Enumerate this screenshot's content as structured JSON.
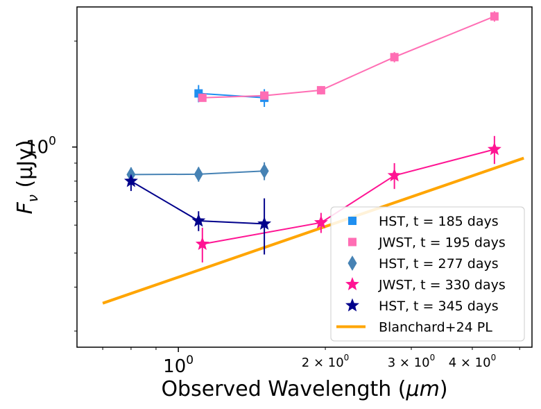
{
  "chart_data": {
    "type": "scatter",
    "title": "",
    "xlabel": "Observed Wavelength (μm)",
    "xlabel_main": "Observed Wavelength (",
    "xlabel_unit": "μm",
    "xlabel_close": ")",
    "ylabel_symbol": "F",
    "ylabel_sub": "ν",
    "ylabel_unit": " (μJy)",
    "xscale": "log",
    "yscale": "log",
    "xlim": [
      0.62,
      5.3
    ],
    "ylim": [
      0.27,
      2.5
    ],
    "grid": false,
    "legend_position": "lower-right",
    "x_ticks": [
      {
        "value": 1.0,
        "label": "10",
        "exp": "0",
        "size": "major"
      },
      {
        "value": 2.0,
        "label": "2 × 10",
        "exp": "0",
        "size": "minor"
      },
      {
        "value": 3.0,
        "label": "3 × 10",
        "exp": "0",
        "size": "minor"
      },
      {
        "value": 4.0,
        "label": "4 × 10",
        "exp": "0",
        "size": "minor"
      }
    ],
    "y_ticks": [
      {
        "value": 1.0,
        "label": "10",
        "exp": "0"
      }
    ],
    "series": [
      {
        "name": "HST, t = 185 days",
        "color": "#1f8ff0",
        "marker": "square",
        "x": [
          1.1,
          1.5
        ],
        "y": [
          1.42,
          1.38
        ],
        "yerr": [
          0.08,
          0.08
        ]
      },
      {
        "name": "JWST, t = 195 days",
        "color": "#ff6eb4",
        "marker": "square",
        "x": [
          1.12,
          1.5,
          1.96,
          2.77,
          4.44
        ],
        "y": [
          1.38,
          1.4,
          1.45,
          1.8,
          2.35
        ],
        "yerr": [
          0.03,
          0.04,
          0.04,
          0.06,
          0.08
        ]
      },
      {
        "name": "HST, t = 277 days",
        "color": "#4682b4",
        "marker": "diamond",
        "x": [
          0.8,
          1.1,
          1.5
        ],
        "y": [
          0.835,
          0.837,
          0.855
        ],
        "yerr": [
          0.04,
          0.04,
          0.05
        ]
      },
      {
        "name": "JWST, t = 330 days",
        "color": "#ff1493",
        "marker": "star",
        "x": [
          1.12,
          1.96,
          2.77,
          4.44
        ],
        "y": [
          0.53,
          0.61,
          0.83,
          0.985
        ],
        "yerr": [
          0.06,
          0.04,
          0.07,
          0.09
        ]
      },
      {
        "name": "HST, t = 345 days",
        "color": "#00008b",
        "marker": "star",
        "x": [
          0.8,
          1.1,
          1.5
        ],
        "y": [
          0.8,
          0.617,
          0.605
        ],
        "yerr": [
          0.05,
          0.04,
          0.11
        ]
      },
      {
        "name": "Blanchard+24 PL",
        "color": "#ffa500",
        "marker": "line",
        "x": [
          0.7,
          5.1
        ],
        "y": [
          0.36,
          0.93
        ],
        "yerr": []
      }
    ]
  }
}
